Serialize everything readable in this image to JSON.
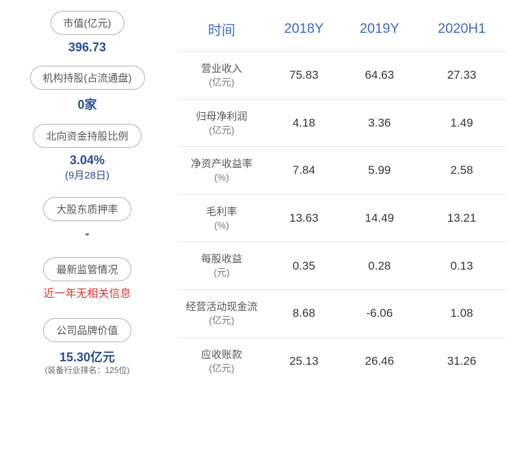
{
  "left": {
    "items": [
      {
        "label": "市值(亿元)",
        "value": "396.73"
      },
      {
        "label": "机构持股(占流通盘)",
        "value": "0家"
      },
      {
        "label": "北向资金持股比例",
        "value": "3.04%",
        "sub": "(9月28日)"
      },
      {
        "label": "大股东质押率",
        "value": "-"
      },
      {
        "label": "最新监管情况",
        "value_red": "近一年无相关信息"
      },
      {
        "label": "公司品牌价值",
        "value": "15.30亿元",
        "sub_gray": "(装备行业排名：125位)"
      }
    ]
  },
  "table": {
    "headers": [
      "时间",
      "2018Y",
      "2019Y",
      "2020H1"
    ],
    "header_color": "#3b6bc4",
    "header_fontsize": 20,
    "cell_fontsize": 17,
    "label_fontsize": 15,
    "border_color": "#e5e5e5",
    "text_color": "#333333",
    "label_color": "#555555",
    "rows": [
      {
        "name": "营业收入",
        "unit": "(亿元)",
        "v": [
          "75.83",
          "64.63",
          "27.33"
        ]
      },
      {
        "name": "归母净利润",
        "unit": "(亿元)",
        "v": [
          "4.18",
          "3.36",
          "1.49"
        ]
      },
      {
        "name": "净资产收益率",
        "unit": "(%)",
        "v": [
          "7.84",
          "5.99",
          "2.58"
        ]
      },
      {
        "name": "毛利率",
        "unit": "(%)",
        "v": [
          "13.63",
          "14.49",
          "13.21"
        ]
      },
      {
        "name": "每股收益",
        "unit": "(元)",
        "v": [
          "0.35",
          "0.28",
          "0.13"
        ]
      },
      {
        "name": "经营活动现金流",
        "unit": "(亿元)",
        "v": [
          "8.68",
          "-6.06",
          "1.08"
        ]
      },
      {
        "name": "应收账款",
        "unit": "(亿元)",
        "v": [
          "25.13",
          "26.46",
          "31.26"
        ]
      }
    ]
  },
  "colors": {
    "pill_border": "#b0b0b0",
    "pill_text": "#555555",
    "value_blue": "#2a4d8f",
    "value_red": "#d93636",
    "background": "#ffffff"
  }
}
